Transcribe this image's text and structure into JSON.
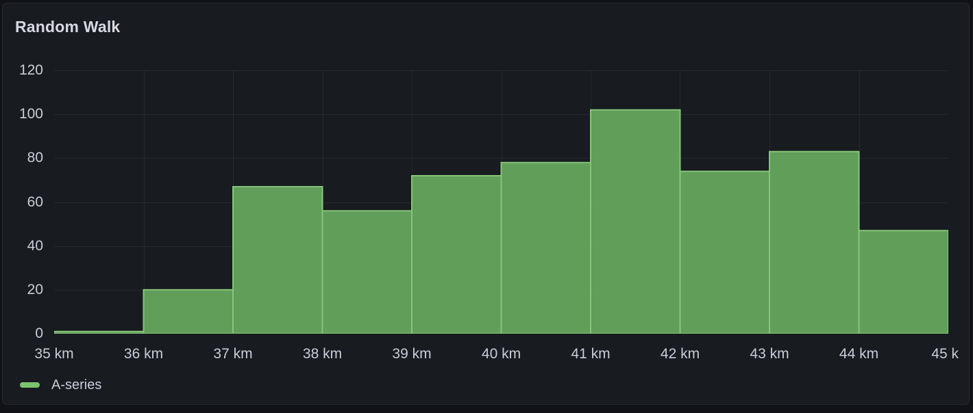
{
  "panel": {
    "title": "Random Walk"
  },
  "legend": {
    "items": [
      {
        "label": "A-series",
        "marker_color": "#7ac46d"
      }
    ]
  },
  "colors": {
    "dashboard_bg": "#111217",
    "panel_bg": "#181b1f",
    "panel_border": "#26282e",
    "title_text": "#d8d9e0",
    "axis_text": "#ccccdc",
    "grid": "rgba(204,204,220,0.08)",
    "series_green": "#73bf69",
    "bar_fill": "rgba(115,191,105,0.8)",
    "bar_stroke": "#86c578"
  },
  "chart_data": {
    "type": "bar",
    "subtype": "histogram",
    "title": "Random Walk",
    "series": [
      {
        "name": "A-series",
        "values": [
          1,
          20,
          67,
          56,
          72,
          78,
          102,
          74,
          83,
          47
        ]
      }
    ],
    "bin_edges": [
      35,
      36,
      37,
      38,
      39,
      40,
      41,
      42,
      43,
      44,
      45
    ],
    "x_tick_labels": [
      "35 km",
      "36 km",
      "37 km",
      "38 km",
      "39 km",
      "40 km",
      "41 km",
      "42 km",
      "43 km",
      "44 km",
      "45 k"
    ],
    "y_ticks": [
      0,
      20,
      40,
      60,
      80,
      100,
      120
    ],
    "y_tick_labels": [
      "0",
      "20",
      "40",
      "60",
      "80",
      "100",
      "120"
    ],
    "xlim": [
      35,
      45
    ],
    "ylim": [
      0,
      120
    ],
    "xlabel": "",
    "ylabel": "",
    "grid": true,
    "legend_position": "bottom-left"
  }
}
